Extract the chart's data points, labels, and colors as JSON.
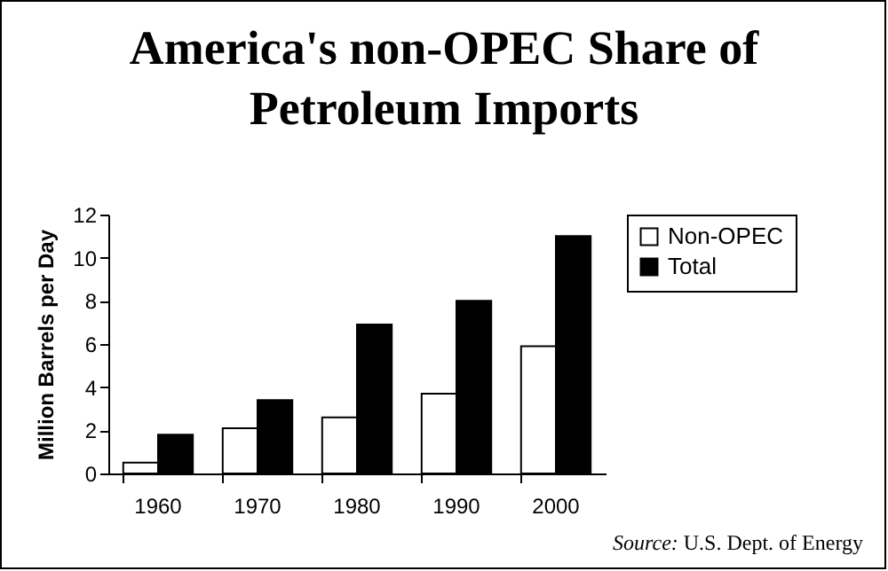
{
  "chart_data": {
    "type": "bar",
    "title": "America's non-OPEC Share of Petroleum Imports",
    "ylabel": "Million Barrels per Day",
    "categories": [
      "1960",
      "1970",
      "1980",
      "1990",
      "2000"
    ],
    "series": [
      {
        "name": "Non-OPEC",
        "color": "#ffffff",
        "values": [
          0.5,
          2.1,
          2.6,
          3.7,
          5.9
        ]
      },
      {
        "name": "Total",
        "color": "#000000",
        "values": [
          1.8,
          3.4,
          6.9,
          8.0,
          11.0
        ]
      }
    ],
    "ylim": [
      0,
      12
    ],
    "yticks": [
      0,
      2,
      4,
      6,
      8,
      10,
      12
    ],
    "grid": false,
    "legend": "right",
    "annotations": [
      "Source: U.S. Dept. of Energy"
    ]
  }
}
